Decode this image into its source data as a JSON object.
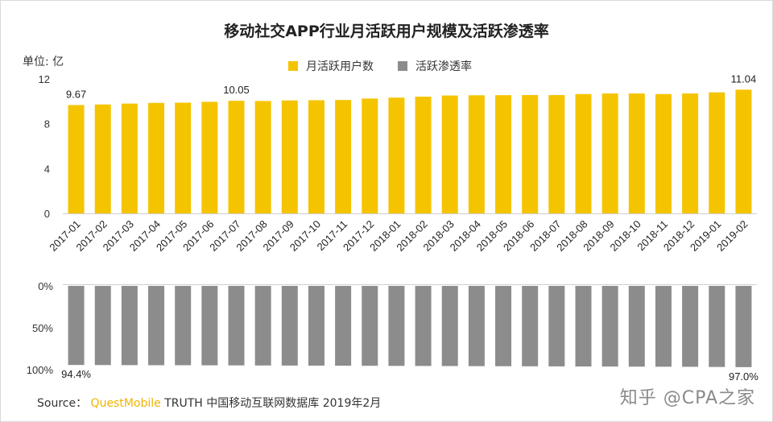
{
  "title": "移动社交APP行业月活跃用户规模及活跃渗透率",
  "unit_label": "单位: 亿",
  "legend": [
    {
      "label": "月活跃用户数",
      "color": "#f5c400"
    },
    {
      "label": "活跃渗透率",
      "color": "#8c8c8c"
    }
  ],
  "source": {
    "prefix": "Source：",
    "brand": "QuestMobile",
    "rest": "TRUTH 中国移动互联网数据库 2019年2月"
  },
  "watermark": "知乎 @CPA之家",
  "chart_data": [
    {
      "type": "bar",
      "title": "移动社交APP行业月活跃用户规模及活跃渗透率",
      "ylabel": "单位: 亿",
      "ylim": [
        0,
        12
      ],
      "yticks": [
        0,
        4,
        8,
        12
      ],
      "categories": [
        "2017-01",
        "2017-02",
        "2017-03",
        "2017-04",
        "2017-05",
        "2017-06",
        "2017-07",
        "2017-08",
        "2017-09",
        "2017-10",
        "2017-11",
        "2017-12",
        "2018-01",
        "2018-02",
        "2018-03",
        "2018-04",
        "2018-05",
        "2018-06",
        "2018-07",
        "2018-08",
        "2018-09",
        "2018-10",
        "2018-11",
        "2018-12",
        "2019-01",
        "2019-02"
      ],
      "series": [
        {
          "name": "月活跃用户数",
          "color": "#f5c400",
          "values": [
            9.67,
            9.72,
            9.8,
            9.86,
            9.88,
            9.96,
            10.05,
            10.03,
            10.08,
            10.1,
            10.12,
            10.25,
            10.33,
            10.42,
            10.52,
            10.54,
            10.55,
            10.56,
            10.56,
            10.65,
            10.7,
            10.7,
            10.65,
            10.7,
            10.8,
            11.04
          ],
          "data_labels": {
            "0": "9.67",
            "6": "10.05",
            "25": "11.04"
          }
        }
      ],
      "grid": false
    },
    {
      "type": "bar",
      "orientation": "inverted",
      "ylim": [
        0,
        100
      ],
      "yticks": [
        "0%",
        "50%",
        "100%"
      ],
      "categories": [
        "2017-01",
        "2017-02",
        "2017-03",
        "2017-04",
        "2017-05",
        "2017-06",
        "2017-07",
        "2017-08",
        "2017-09",
        "2017-10",
        "2017-11",
        "2017-12",
        "2018-01",
        "2018-02",
        "2018-03",
        "2018-04",
        "2018-05",
        "2018-06",
        "2018-07",
        "2018-08",
        "2018-09",
        "2018-10",
        "2018-11",
        "2018-12",
        "2019-01",
        "2019-02"
      ],
      "series": [
        {
          "name": "活跃渗透率",
          "color": "#8c8c8c",
          "values": [
            94.4,
            94.5,
            94.6,
            94.7,
            94.7,
            94.8,
            94.9,
            95.0,
            95.1,
            95.2,
            95.3,
            95.4,
            95.5,
            95.6,
            95.7,
            95.8,
            95.9,
            96.0,
            96.1,
            96.2,
            96.3,
            96.4,
            96.5,
            96.6,
            96.8,
            97.0
          ],
          "data_labels": {
            "0": "94.4%",
            "25": "97.0%"
          }
        }
      ]
    }
  ]
}
